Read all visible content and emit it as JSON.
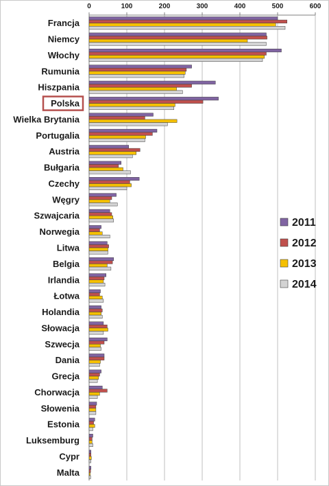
{
  "chart_data": {
    "type": "bar",
    "orientation": "horizontal",
    "title": "",
    "xlabel": "",
    "ylabel": "",
    "xlim": [
      0,
      600
    ],
    "ticks": [
      0,
      100,
      200,
      300,
      400,
      500,
      600
    ],
    "grid": true,
    "legend_position": "right",
    "highlighted_category": "Polska",
    "highlight_color": "#b5504e",
    "categories": [
      "Francja",
      "Niemcy",
      "Włochy",
      "Rumunia",
      "Hiszpania",
      "Polska",
      "Wielka Brytania",
      "Portugalia",
      "Austria",
      "Bułgaria",
      "Czechy",
      "Węgry",
      "Szwajcaria",
      "Norwegia",
      "Litwa",
      "Belgia",
      "Irlandia",
      "Łotwa",
      "Holandia",
      "Słowacja",
      "Szwecja",
      "Dania",
      "Grecja",
      "Chorwacja",
      "Słowenia",
      "Estonia",
      "Luksemburg",
      "Cypr",
      "Malta"
    ],
    "series": [
      {
        "name": "2011",
        "color": "#8064a2",
        "values": [
          500,
          470,
          510,
          272,
          335,
          343,
          170,
          180,
          105,
          85,
          133,
          72,
          55,
          32,
          48,
          65,
          45,
          30,
          32,
          38,
          48,
          40,
          32,
          35,
          20,
          15,
          10,
          5,
          5
        ]
      },
      {
        "name": "2012",
        "color": "#c0504d",
        "values": [
          525,
          472,
          470,
          258,
          272,
          302,
          148,
          168,
          135,
          78,
          108,
          60,
          60,
          28,
          52,
          62,
          40,
          28,
          35,
          48,
          40,
          40,
          28,
          48,
          18,
          12,
          8,
          5,
          4
        ]
      },
      {
        "name": "2013",
        "color": "#f5c000",
        "values": [
          495,
          420,
          465,
          255,
          232,
          228,
          233,
          150,
          125,
          90,
          112,
          55,
          63,
          35,
          50,
          48,
          38,
          35,
          32,
          50,
          30,
          30,
          25,
          28,
          18,
          15,
          8,
          6,
          3
        ]
      },
      {
        "name": "2014",
        "color": "#d3d3d3",
        "values": [
          520,
          470,
          460,
          252,
          248,
          225,
          208,
          148,
          115,
          110,
          100,
          75,
          65,
          55,
          50,
          58,
          42,
          38,
          35,
          38,
          32,
          28,
          22,
          22,
          18,
          10,
          10,
          5,
          4
        ]
      }
    ]
  }
}
